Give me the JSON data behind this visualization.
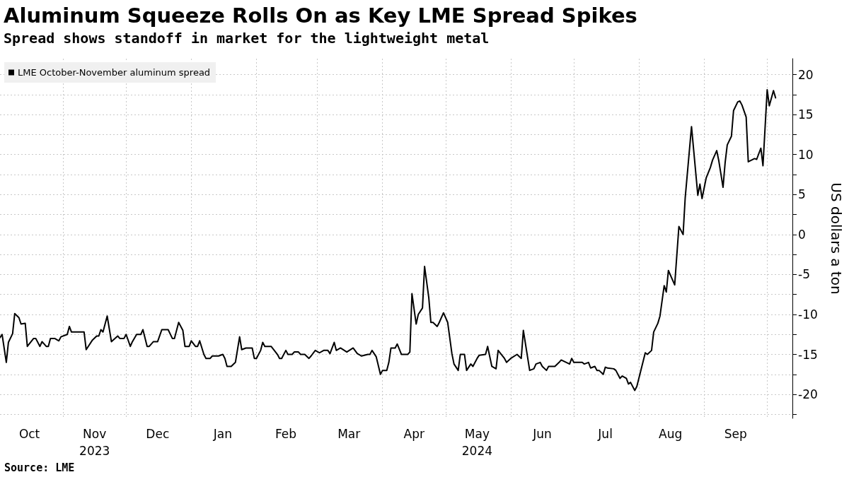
{
  "chart_data": {
    "type": "line",
    "title": "Aluminum Squeeze Rolls On as Key LME Spread Spikes",
    "subtitle": "Spread shows standoff in market for the lightweight metal",
    "ylabel": "US dollars a ton",
    "annotations": [
      "Source: LME"
    ],
    "x": [
      "2023-10-02",
      "2023-10-03",
      "2023-10-05",
      "2023-10-06",
      "2023-10-08",
      "2023-10-09",
      "2023-10-11",
      "2023-10-12",
      "2023-10-14",
      "2023-10-15",
      "2023-10-18",
      "2023-10-19",
      "2023-10-21",
      "2023-10-22",
      "2023-10-24",
      "2023-10-25",
      "2023-10-26",
      "2023-10-28",
      "2023-10-30",
      "2023-10-31",
      "2023-11-03",
      "2023-11-04",
      "2023-11-05",
      "2023-11-11",
      "2023-11-12",
      "2023-11-15",
      "2023-11-17",
      "2023-11-18",
      "2023-11-19",
      "2023-11-20",
      "2023-11-22",
      "2023-11-24",
      "2023-11-27",
      "2023-11-28",
      "2023-11-30",
      "2023-12-01",
      "2023-12-03",
      "2023-12-04",
      "2023-12-06",
      "2023-12-08",
      "2023-12-09",
      "2023-12-11",
      "2023-12-12",
      "2023-12-14",
      "2023-12-16",
      "2023-12-18",
      "2023-12-21",
      "2023-12-23",
      "2023-12-24",
      "2023-12-26",
      "2023-12-28",
      "2023-12-29",
      "2023-12-31",
      "2024-01-01",
      "2024-01-03",
      "2024-01-04",
      "2024-01-05",
      "2024-01-07",
      "2024-01-08",
      "2024-01-10",
      "2024-01-11",
      "2024-01-14",
      "2024-01-16",
      "2024-01-17",
      "2024-01-18",
      "2024-01-20",
      "2024-01-22",
      "2024-01-24",
      "2024-01-25",
      "2024-01-27",
      "2024-01-30",
      "2024-01-31",
      "2024-02-01",
      "2024-02-03",
      "2024-02-04",
      "2024-02-05",
      "2024-02-08",
      "2024-02-11",
      "2024-02-12",
      "2024-02-13",
      "2024-02-15",
      "2024-02-16",
      "2024-02-18",
      "2024-02-19",
      "2024-02-21",
      "2024-02-22",
      "2024-02-24",
      "2024-02-26",
      "2024-02-27",
      "2024-02-29",
      "2024-03-02",
      "2024-03-04",
      "2024-03-06",
      "2024-03-07",
      "2024-03-09",
      "2024-03-10",
      "2024-03-12",
      "2024-03-15",
      "2024-03-18",
      "2024-03-20",
      "2024-03-22",
      "2024-03-25",
      "2024-03-26",
      "2024-03-27",
      "2024-03-29",
      "2024-03-31",
      "2024-04-01",
      "2024-04-03",
      "2024-04-04",
      "2024-04-05",
      "2024-04-07",
      "2024-04-08",
      "2024-04-10",
      "2024-04-13",
      "2024-04-14",
      "2024-04-15",
      "2024-04-17",
      "2024-04-18",
      "2024-04-20",
      "2024-04-21",
      "2024-04-23",
      "2024-04-24",
      "2024-04-25",
      "2024-04-27",
      "2024-04-28",
      "2024-04-30",
      "2024-05-02",
      "2024-05-04",
      "2024-05-05",
      "2024-05-07",
      "2024-05-08",
      "2024-05-10",
      "2024-05-11",
      "2024-05-13",
      "2024-05-14",
      "2024-05-16",
      "2024-05-17",
      "2024-05-20",
      "2024-05-21",
      "2024-05-23",
      "2024-05-25",
      "2024-05-26",
      "2024-05-29",
      "2024-05-30",
      "2024-06-01",
      "2024-06-04",
      "2024-06-06",
      "2024-06-07",
      "2024-06-10",
      "2024-06-12",
      "2024-06-13",
      "2024-06-15",
      "2024-06-16",
      "2024-06-18",
      "2024-06-19",
      "2024-06-22",
      "2024-06-24",
      "2024-06-25",
      "2024-06-29",
      "2024-06-30",
      "2024-07-01",
      "2024-07-05",
      "2024-07-06",
      "2024-07-08",
      "2024-07-09",
      "2024-07-11",
      "2024-07-12",
      "2024-07-13",
      "2024-07-15",
      "2024-07-16",
      "2024-07-17",
      "2024-07-20",
      "2024-07-21",
      "2024-07-23",
      "2024-07-24",
      "2024-07-26",
      "2024-07-27",
      "2024-07-28",
      "2024-07-30",
      "2024-07-31",
      "2024-08-02",
      "2024-08-04",
      "2024-08-05",
      "2024-08-07",
      "2024-08-08",
      "2024-08-10",
      "2024-08-11",
      "2024-08-13",
      "2024-08-14",
      "2024-08-15",
      "2024-08-18",
      "2024-08-20",
      "2024-08-22",
      "2024-08-23",
      "2024-08-26",
      "2024-08-29",
      "2024-08-30",
      "2024-08-31",
      "2024-09-02",
      "2024-09-04",
      "2024-09-05",
      "2024-09-07",
      "2024-09-08",
      "2024-09-10",
      "2024-09-11",
      "2024-09-12",
      "2024-09-14",
      "2024-09-15",
      "2024-09-17",
      "2024-09-18",
      "2024-09-19",
      "2024-09-21",
      "2024-09-22",
      "2024-09-25",
      "2024-09-26",
      "2024-09-28",
      "2024-09-29",
      "2024-10-01",
      "2024-10-02",
      "2024-10-04",
      "2024-10-05"
    ],
    "series": [
      {
        "name": "LME October-November aluminum spread",
        "color": "#000000",
        "values": [
          -12.9,
          -12.5,
          -16.0,
          -13.5,
          -12.4,
          -9.9,
          -10.4,
          -11.2,
          -11.1,
          -14.0,
          -13.0,
          -13.0,
          -14.0,
          -13.4,
          -14.0,
          -14.0,
          -13.0,
          -13.0,
          -13.3,
          -12.8,
          -12.5,
          -11.5,
          -12.2,
          -12.2,
          -14.4,
          -13.2,
          -12.7,
          -12.7,
          -11.9,
          -12.2,
          -10.2,
          -13.4,
          -12.7,
          -13.0,
          -13.0,
          -12.5,
          -14.0,
          -13.4,
          -12.5,
          -12.5,
          -11.9,
          -14.0,
          -14.0,
          -13.4,
          -13.4,
          -11.9,
          -11.9,
          -13.0,
          -13.0,
          -11.0,
          -12.0,
          -14.0,
          -14.0,
          -13.3,
          -14.0,
          -14.0,
          -13.3,
          -15.0,
          -15.5,
          -15.5,
          -15.2,
          -15.2,
          -15.0,
          -15.5,
          -16.5,
          -16.5,
          -16.0,
          -12.8,
          -14.4,
          -14.2,
          -14.2,
          -15.5,
          -15.5,
          -14.5,
          -13.5,
          -14.0,
          -14.0,
          -15.0,
          -15.5,
          -15.5,
          -14.5,
          -15.0,
          -15.0,
          -14.7,
          -14.7,
          -15.0,
          -15.0,
          -15.5,
          -15.2,
          -14.5,
          -14.8,
          -14.5,
          -14.5,
          -14.9,
          -13.5,
          -14.5,
          -14.2,
          -14.7,
          -14.2,
          -14.9,
          -15.2,
          -15.0,
          -15.0,
          -14.5,
          -15.3,
          -17.5,
          -17.0,
          -17.0,
          -16.0,
          -14.2,
          -14.2,
          -13.7,
          -15.0,
          -15.0,
          -14.7,
          -7.4,
          -11.2,
          -10.0,
          -9.2,
          -4.0,
          -7.9,
          -11.0,
          -11.0,
          -11.5,
          -11.0,
          -9.8,
          -11.0,
          -14.9,
          -16.2,
          -17.0,
          -15.0,
          -15.0,
          -17.0,
          -16.2,
          -16.5,
          -15.5,
          -15.1,
          -15.0,
          -14.0,
          -16.5,
          -16.8,
          -14.5,
          -15.5,
          -16.0,
          -15.5,
          -15.0,
          -15.5,
          -12.0,
          -17.0,
          -16.8,
          -16.2,
          -16.0,
          -16.5,
          -17.0,
          -16.5,
          -16.5,
          -16.0,
          -15.7,
          -16.2,
          -15.5,
          -16.0,
          -16.0,
          -16.2,
          -16.0,
          -16.7,
          -16.5,
          -17.0,
          -17.0,
          -17.5,
          -16.6,
          -16.7,
          -16.8,
          -17.0,
          -18.0,
          -17.7,
          -18.0,
          -18.7,
          -18.5,
          -19.5,
          -19.0,
          -16.9,
          -14.8,
          -15.0,
          -14.5,
          -12.2,
          -11.1,
          -10.2,
          -6.4,
          -7.2,
          -4.5,
          -6.3,
          1.0,
          0,
          4.6,
          13.5,
          4.9,
          6.3,
          4.5,
          7.1,
          8.4,
          9.3,
          10.5,
          9.2,
          5.9,
          9.0,
          11.2,
          12.3,
          15.5,
          16.6,
          16.7,
          16.2,
          14.7,
          9.1,
          9.5,
          9.4,
          10.8,
          8.6,
          18.1,
          16.1,
          18.0,
          17.1
        ]
      }
    ],
    "xlim": [
      "2023-10-02",
      "2024-10-13"
    ],
    "xticks": [
      {
        "value": "2023-11-01",
        "label": null
      },
      {
        "value": "2023-12-01",
        "label": null
      },
      {
        "value": "2024-01-01",
        "label": null
      },
      {
        "value": "2024-02-01",
        "label": null
      },
      {
        "value": "2024-03-01",
        "label": null
      },
      {
        "value": "2024-04-01",
        "label": null
      },
      {
        "value": "2024-05-01",
        "label": null
      },
      {
        "value": "2024-06-01",
        "label": null
      },
      {
        "value": "2024-07-01",
        "label": null
      },
      {
        "value": "2024-08-01",
        "label": null
      },
      {
        "value": "2024-09-01",
        "label": null
      },
      {
        "value": "2024-10-01",
        "label": null
      },
      {
        "value": "2023-10-16",
        "label": "Oct"
      },
      {
        "value": "2023-11-16",
        "label": "Nov\n2023"
      },
      {
        "value": "2023-12-16",
        "label": "Dec"
      },
      {
        "value": "2024-01-16",
        "label": "Jan"
      },
      {
        "value": "2024-02-15",
        "label": "Feb"
      },
      {
        "value": "2024-03-16",
        "label": "Mar"
      },
      {
        "value": "2024-04-16",
        "label": "Apr"
      },
      {
        "value": "2024-05-16",
        "label": "May\n2024"
      },
      {
        "value": "2024-06-16",
        "label": "Jun"
      },
      {
        "value": "2024-07-16",
        "label": "Jul"
      },
      {
        "value": "2024-08-16",
        "label": "Aug"
      },
      {
        "value": "2024-09-16",
        "label": "Sep"
      }
    ],
    "ylim": [
      -23,
      22
    ],
    "yticks": [
      {
        "value": -22.5,
        "label": null
      },
      -20,
      {
        "value": -17.5,
        "label": null
      },
      -15,
      {
        "value": -12.5,
        "label": null
      },
      -10,
      {
        "value": -7.5,
        "label": null
      },
      -5,
      {
        "value": -2.5,
        "label": null
      },
      0,
      {
        "value": 2.5,
        "label": null
      },
      5,
      {
        "value": 7.5,
        "label": null
      },
      10,
      {
        "value": 12.5,
        "label": null
      },
      15,
      {
        "value": 17.5,
        "label": null
      },
      20
    ],
    "grid": true,
    "legend": "top left",
    "marker": "none",
    "line_style": "solid"
  }
}
